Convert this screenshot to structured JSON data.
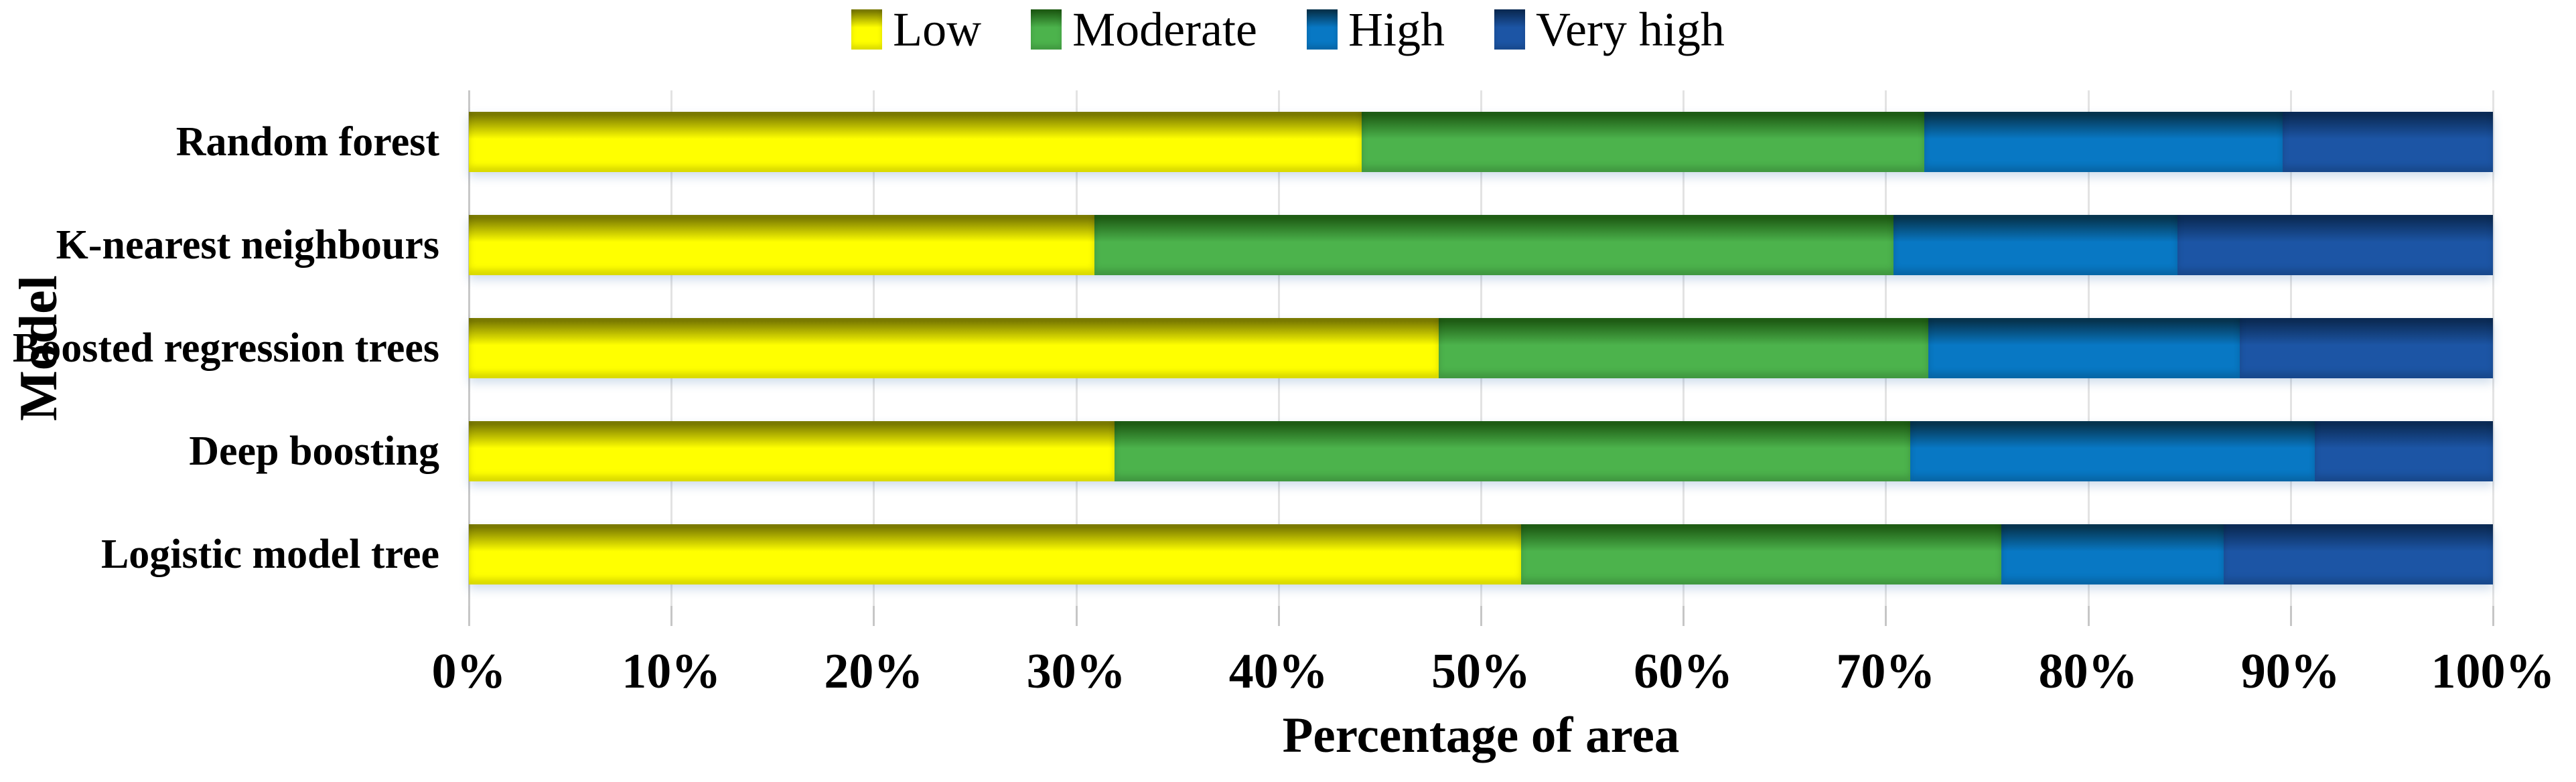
{
  "chart_data": {
    "type": "bar",
    "variant": "horizontal-stacked",
    "title": "",
    "xlabel": "Percentage of area",
    "ylabel": "Model",
    "xlim": [
      0,
      100
    ],
    "x_tick_step": 10,
    "x_ticks": [
      "0%",
      "10%",
      "20%",
      "30%",
      "40%",
      "50%",
      "60%",
      "70%",
      "80%",
      "90%",
      "100%"
    ],
    "grid": "vertical-light",
    "legend_position": "top-center",
    "categories": [
      "Random forest",
      "K-nearest neighbours",
      "Boosted regression trees",
      "Deep boosting",
      "Logistic model tree"
    ],
    "series": [
      {
        "name": "Low",
        "color": "#FFFF00",
        "color_dark": "#7A7A00",
        "values": [
          44.1,
          30.9,
          47.9,
          31.9,
          52.0
        ]
      },
      {
        "name": "Moderate",
        "color": "#4CB34C",
        "color_dark": "#1E5C14",
        "values": [
          27.8,
          39.5,
          24.2,
          39.3,
          23.7
        ]
      },
      {
        "name": "High",
        "color": "#0878C4",
        "color_dark": "#06344F",
        "values": [
          17.7,
          14.0,
          15.4,
          20.0,
          11.0
        ]
      },
      {
        "name": "Very high",
        "color": "#1C55A5",
        "color_dark": "#0B2B56",
        "values": [
          10.4,
          15.6,
          12.5,
          8.8,
          13.3
        ]
      }
    ]
  },
  "style": {
    "gridline_color": "#E3E3E3",
    "axis_line_color": "#C8C8C8",
    "tick_color": "#C6C6C6",
    "text_color": "#000000"
  }
}
